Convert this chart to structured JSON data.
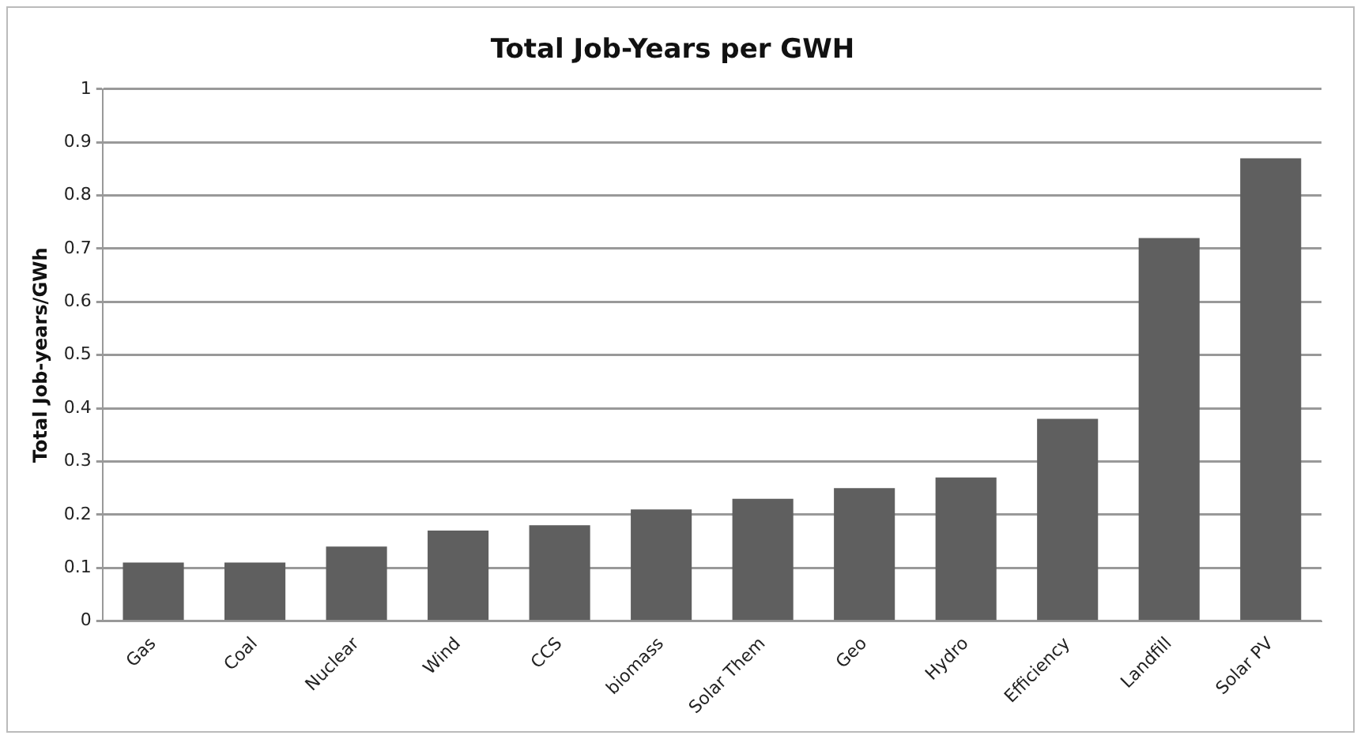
{
  "chart_data": {
    "type": "bar",
    "title": "Total Job-Years per GWH",
    "ylabel": "Total Job-years/GWh",
    "categories": [
      "Gas",
      "Coal",
      "Nuclear",
      "Wind",
      "CCS",
      "biomass",
      "Solar Them",
      "Geo",
      "Hydro",
      "Efficiency",
      "Landfill",
      "Solar PV"
    ],
    "values": [
      0.11,
      0.11,
      0.14,
      0.17,
      0.18,
      0.21,
      0.23,
      0.25,
      0.27,
      0.38,
      0.72,
      0.87
    ],
    "color": "#5f5f5f",
    "ylim": [
      0,
      1
    ],
    "yticks": [
      0,
      0.1,
      0.2,
      0.3,
      0.4,
      0.5,
      0.6,
      0.7,
      0.8,
      0.9,
      1
    ],
    "grid": "y",
    "legend": false
  }
}
